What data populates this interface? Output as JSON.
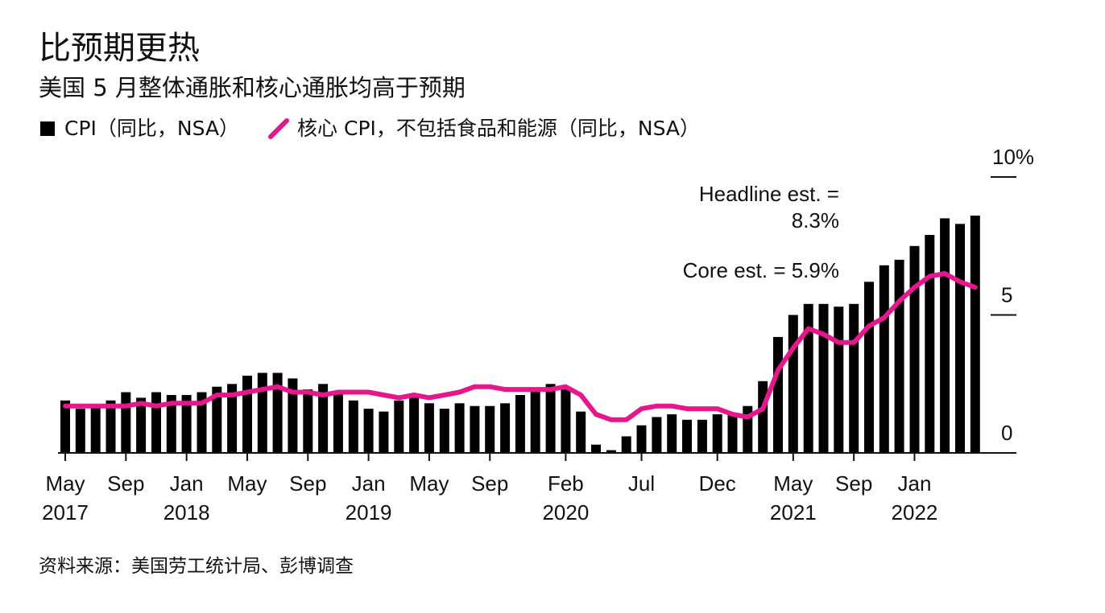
{
  "title": "比预期更热",
  "subtitle": "美国 5 月整体通胀和核心通胀均高于预期",
  "legend": {
    "cpi": "CPI（同比，NSA）",
    "core": "核心 CPI，不包括食品和能源（同比，NSA）"
  },
  "source": "资料来源：美国劳工统计局、彭博调查",
  "colors": {
    "bar": "#000000",
    "core_line": "#e6168d",
    "axis": "#111111"
  },
  "chart_data": {
    "type": "bar",
    "months": [
      "2017-05",
      "2017-06",
      "2017-07",
      "2017-08",
      "2017-09",
      "2017-10",
      "2017-11",
      "2017-12",
      "2018-01",
      "2018-02",
      "2018-03",
      "2018-04",
      "2018-05",
      "2018-06",
      "2018-07",
      "2018-08",
      "2018-09",
      "2018-10",
      "2018-11",
      "2018-12",
      "2019-01",
      "2019-02",
      "2019-03",
      "2019-04",
      "2019-05",
      "2019-06",
      "2019-07",
      "2019-08",
      "2019-09",
      "2019-10",
      "2019-11",
      "2019-12",
      "2020-01",
      "2020-02",
      "2020-03",
      "2020-04",
      "2020-05",
      "2020-06",
      "2020-07",
      "2020-08",
      "2020-09",
      "2020-10",
      "2020-11",
      "2020-12",
      "2021-01",
      "2021-02",
      "2021-03",
      "2021-04",
      "2021-05",
      "2021-06",
      "2021-07",
      "2021-08",
      "2021-09",
      "2021-10",
      "2021-11",
      "2021-12",
      "2022-01",
      "2022-02",
      "2022-03",
      "2022-04",
      "2022-05"
    ],
    "series": [
      {
        "name": "CPI（同比，NSA）",
        "kind": "bar",
        "values": [
          1.9,
          1.6,
          1.7,
          1.9,
          2.2,
          2.0,
          2.2,
          2.1,
          2.1,
          2.2,
          2.4,
          2.5,
          2.8,
          2.9,
          2.9,
          2.7,
          2.3,
          2.5,
          2.2,
          1.9,
          1.6,
          1.5,
          1.9,
          2.0,
          1.8,
          1.6,
          1.8,
          1.7,
          1.7,
          1.8,
          2.1,
          2.3,
          2.5,
          2.3,
          1.5,
          0.3,
          0.1,
          0.6,
          1.0,
          1.3,
          1.4,
          1.2,
          1.2,
          1.4,
          1.4,
          1.7,
          2.6,
          4.2,
          5.0,
          5.4,
          5.4,
          5.3,
          5.4,
          6.2,
          6.8,
          7.0,
          7.5,
          7.9,
          8.5,
          8.3,
          8.6
        ]
      },
      {
        "name": "核心 CPI，不包括食品和能源（同比，NSA）",
        "kind": "line",
        "values": [
          1.7,
          1.7,
          1.7,
          1.7,
          1.7,
          1.8,
          1.7,
          1.8,
          1.8,
          1.8,
          2.1,
          2.1,
          2.2,
          2.3,
          2.4,
          2.2,
          2.2,
          2.1,
          2.2,
          2.2,
          2.2,
          2.1,
          2.0,
          2.1,
          2.0,
          2.1,
          2.2,
          2.4,
          2.4,
          2.3,
          2.3,
          2.3,
          2.3,
          2.4,
          2.1,
          1.4,
          1.2,
          1.2,
          1.6,
          1.7,
          1.7,
          1.6,
          1.6,
          1.6,
          1.4,
          1.3,
          1.6,
          3.0,
          3.8,
          4.5,
          4.3,
          4.0,
          4.0,
          4.6,
          4.9,
          5.5,
          6.0,
          6.4,
          6.5,
          6.2,
          6.0
        ]
      }
    ],
    "x_ticks": [
      {
        "month": "2017-05",
        "label": "May",
        "year": "2017"
      },
      {
        "month": "2017-09",
        "label": "Sep",
        "year": ""
      },
      {
        "month": "2018-01",
        "label": "Jan",
        "year": "2018"
      },
      {
        "month": "2018-05",
        "label": "May",
        "year": ""
      },
      {
        "month": "2018-09",
        "label": "Sep",
        "year": ""
      },
      {
        "month": "2019-01",
        "label": "Jan",
        "year": "2019"
      },
      {
        "month": "2019-05",
        "label": "May",
        "year": ""
      },
      {
        "month": "2019-09",
        "label": "Sep",
        "year": ""
      },
      {
        "month": "2020-02",
        "label": "Feb",
        "year": "2020"
      },
      {
        "month": "2020-07",
        "label": "Jul",
        "year": ""
      },
      {
        "month": "2020-12",
        "label": "Dec",
        "year": ""
      },
      {
        "month": "2021-05",
        "label": "May",
        "year": "2021"
      },
      {
        "month": "2021-09",
        "label": "Sep",
        "year": ""
      },
      {
        "month": "2022-01",
        "label": "Jan",
        "year": "2022"
      }
    ],
    "y_ticks": [
      {
        "value": 0,
        "label": "0"
      },
      {
        "value": 5,
        "label": "5"
      },
      {
        "value": 10,
        "label": "10%"
      }
    ],
    "ylim": [
      0,
      10
    ],
    "annotations": {
      "headline_line1": "Headline est. =",
      "headline_line2": "8.3%",
      "core": "Core est. = 5.9%"
    }
  }
}
